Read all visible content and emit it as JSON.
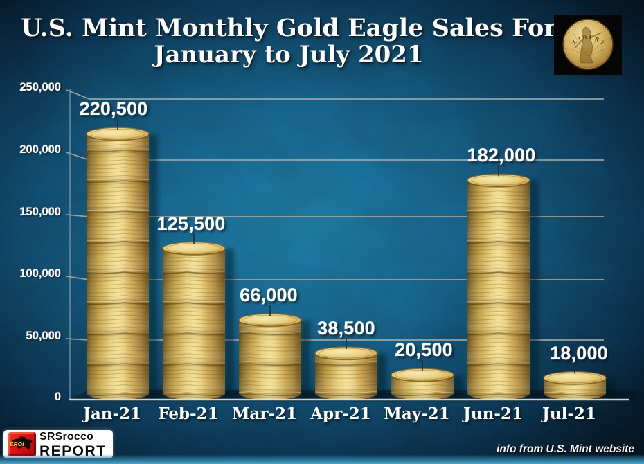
{
  "header": {
    "title_line1": "U.S. Mint Monthly Gold Eagle Sales For",
    "title_line2": "January to July 2021"
  },
  "chart_data": {
    "type": "bar",
    "title": "U.S. Mint Monthly Gold Eagle Sales For January to July 2021",
    "categories": [
      "Jan-21",
      "Feb-21",
      "Mar-21",
      "Apr-21",
      "May-21",
      "Jun-21",
      "Jul-21"
    ],
    "values": [
      220500,
      125500,
      66000,
      38500,
      20500,
      182000,
      18000
    ],
    "value_labels": [
      "220,500",
      "125,500",
      "66,000",
      "38,500",
      "20,500",
      "182,000",
      "18,000"
    ],
    "xlabel": "",
    "ylabel": "",
    "ylim": [
      0,
      250000
    ],
    "y_ticks": [
      0,
      50000,
      100000,
      150000,
      200000,
      250000
    ],
    "y_tick_labels": [
      "0",
      "50,000",
      "100,000",
      "150,000",
      "200,000",
      "250,000"
    ],
    "grid": "horizontal",
    "legend": "none",
    "bar_style": "3d-stacked-gold-coin-cylinders"
  },
  "branding": {
    "logo_top": "SRSrocco",
    "logo_bottom": "REPORT",
    "logo_badge": "EROI"
  },
  "coin_photo": {
    "engraving": "LIBERTY"
  },
  "footer": {
    "credit": "info from U.S. Mint website"
  },
  "colors": {
    "background_center": "#1b6e93",
    "background_edge": "#04111b",
    "gridline": "#b3a897",
    "baseline": "#d9dedd",
    "gold_highlight": "#f2e096",
    "gold_shadow": "#5e4a1c",
    "label_text": "#ffffff",
    "logo_red": "#e01111",
    "logo_yellow": "#ffd900",
    "bottom_glow": "#4da6c6"
  }
}
